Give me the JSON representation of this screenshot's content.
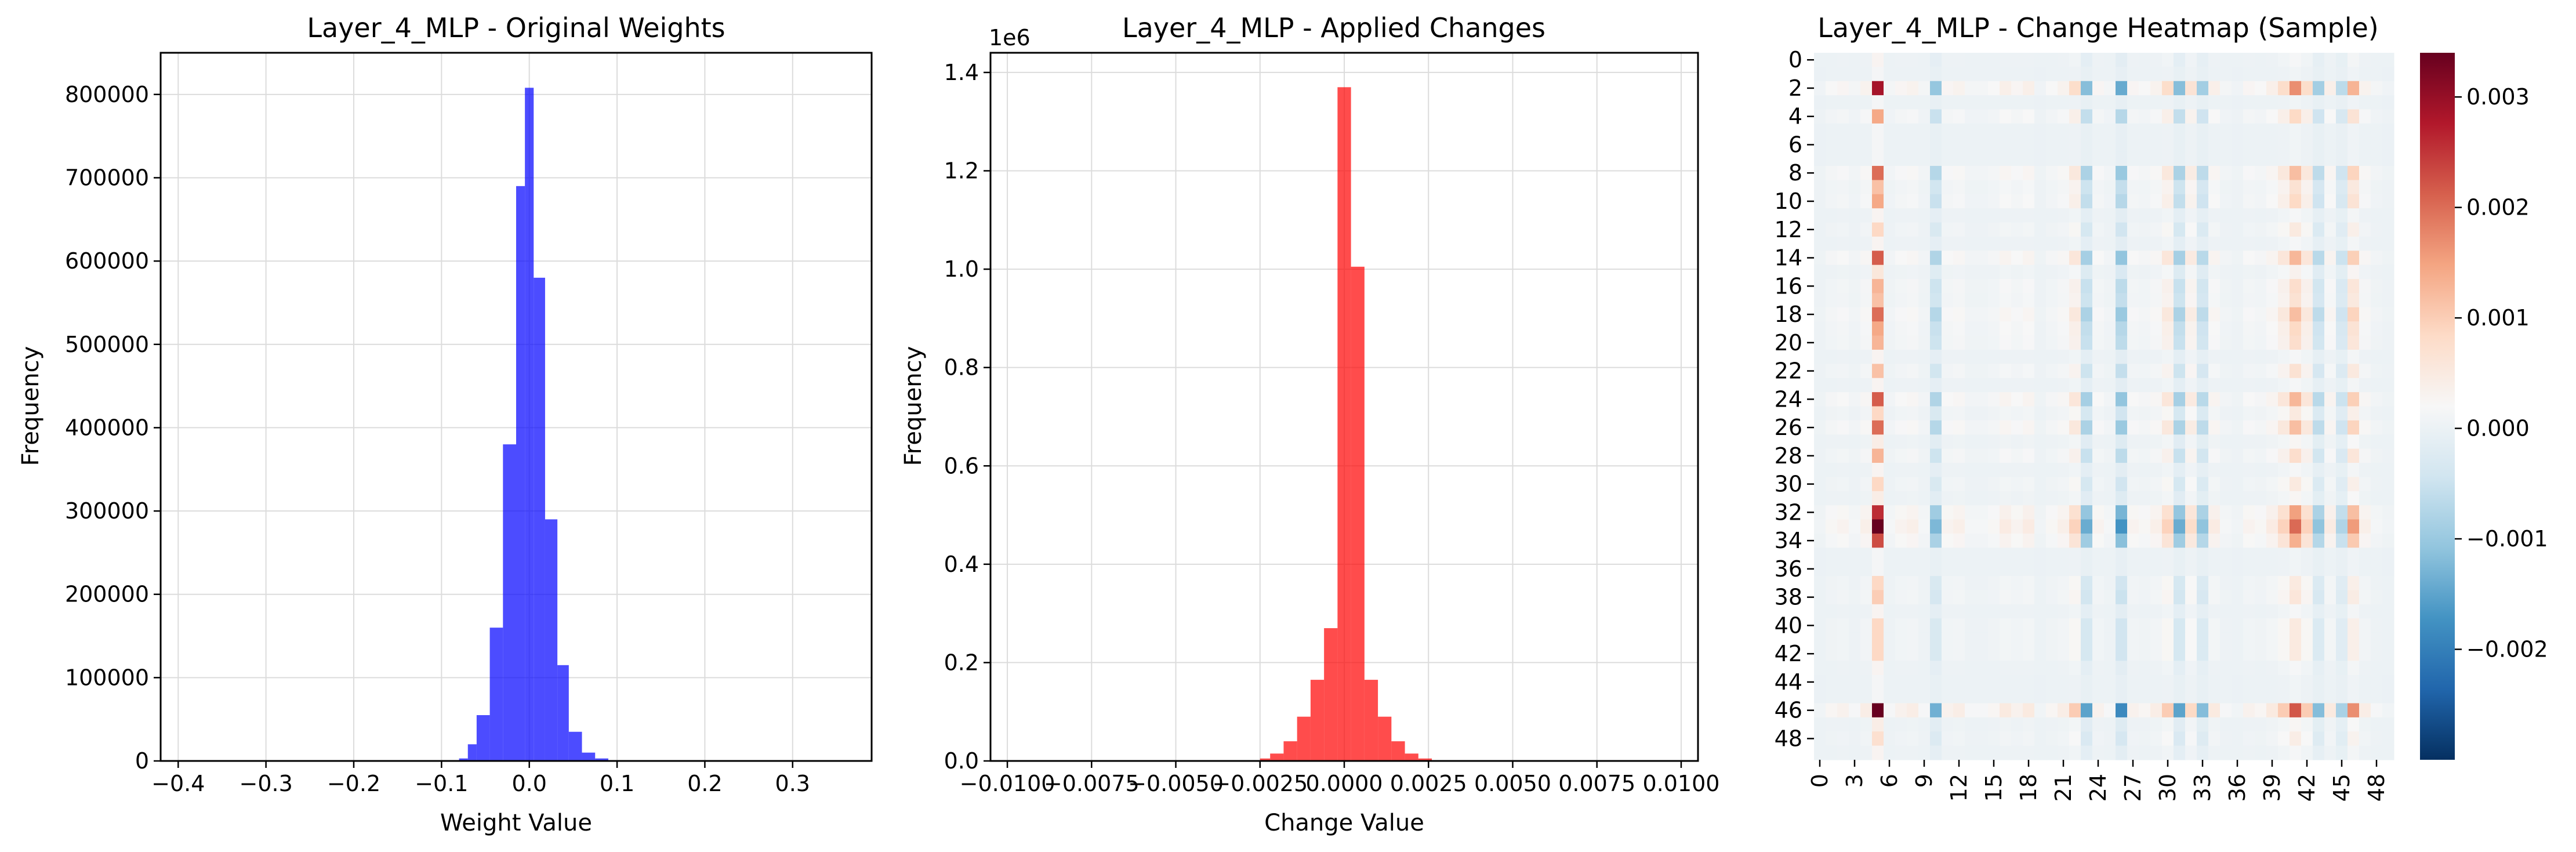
{
  "chart_data": [
    {
      "type": "bar",
      "title": "Layer_4_MLP - Original Weights",
      "xlabel": "Weight Value",
      "ylabel": "Frequency",
      "xlim": [
        -0.42,
        0.39
      ],
      "ylim": [
        0,
        850000
      ],
      "grid": true,
      "color": "#0000ff",
      "xticks": [
        -0.4,
        -0.3,
        -0.2,
        -0.1,
        0.0,
        0.1,
        0.2,
        0.3
      ],
      "xtick_labels": [
        "−0.4",
        "−0.3",
        "−0.2",
        "−0.1",
        "0.0",
        "0.1",
        "0.2",
        "0.3"
      ],
      "yticks": [
        0,
        100000,
        200000,
        300000,
        400000,
        500000,
        600000,
        700000,
        800000
      ],
      "ytick_labels": [
        "0",
        "100000",
        "200000",
        "300000",
        "400000",
        "500000",
        "600000",
        "700000",
        "800000"
      ],
      "bins": [
        {
          "x0": -0.09,
          "x1": -0.08,
          "value": 800
        },
        {
          "x0": -0.08,
          "x1": -0.07,
          "value": 3000
        },
        {
          "x0": -0.07,
          "x1": -0.06,
          "value": 20000
        },
        {
          "x0": -0.06,
          "x1": -0.045,
          "value": 55000
        },
        {
          "x0": -0.045,
          "x1": -0.03,
          "value": 160000
        },
        {
          "x0": -0.03,
          "x1": -0.015,
          "value": 380000
        },
        {
          "x0": -0.015,
          "x1": -0.005,
          "value": 690000
        },
        {
          "x0": -0.005,
          "x1": 0.005,
          "value": 808000
        },
        {
          "x0": 0.005,
          "x1": 0.018,
          "value": 580000
        },
        {
          "x0": 0.018,
          "x1": 0.032,
          "value": 290000
        },
        {
          "x0": 0.032,
          "x1": 0.045,
          "value": 115000
        },
        {
          "x0": 0.045,
          "x1": 0.06,
          "value": 35000
        },
        {
          "x0": 0.06,
          "x1": 0.075,
          "value": 10000
        },
        {
          "x0": 0.075,
          "x1": 0.09,
          "value": 3000
        },
        {
          "x0": 0.09,
          "x1": 0.105,
          "value": 800
        }
      ]
    },
    {
      "type": "bar",
      "title": "Layer_4_MLP - Applied Changes",
      "xlabel": "Change Value",
      "ylabel": "Frequency",
      "y_multiplier_label": "1e6",
      "xlim": [
        -0.0105,
        0.0105
      ],
      "ylim": [
        0,
        1.44
      ],
      "grid": true,
      "color": "#ff0000",
      "xticks": [
        -0.01,
        -0.0075,
        -0.005,
        -0.0025,
        0.0,
        0.0025,
        0.005,
        0.0075,
        0.01
      ],
      "xtick_labels": [
        "−0.0100",
        "−0.0075",
        "−0.0050",
        "−0.0025",
        "0.0000",
        "0.0025",
        "0.0050",
        "0.0075",
        "0.0100"
      ],
      "yticks": [
        0,
        0.2,
        0.4,
        0.6,
        0.8,
        1.0,
        1.2,
        1.4
      ],
      "ytick_labels": [
        "0.0",
        "0.2",
        "0.4",
        "0.6",
        "0.8",
        "1.0",
        "1.2",
        "1.4"
      ],
      "bins": [
        {
          "x0": -0.0025,
          "x1": -0.0022,
          "value": 0.005
        },
        {
          "x0": -0.0022,
          "x1": -0.0018,
          "value": 0.015
        },
        {
          "x0": -0.0018,
          "x1": -0.0014,
          "value": 0.04
        },
        {
          "x0": -0.0014,
          "x1": -0.001,
          "value": 0.09
        },
        {
          "x0": -0.001,
          "x1": -0.0006,
          "value": 0.165
        },
        {
          "x0": -0.0006,
          "x1": -0.0002,
          "value": 0.27
        },
        {
          "x0": -0.0002,
          "x1": 0.0002,
          "value": 1.37
        },
        {
          "x0": 0.0002,
          "x1": 0.0006,
          "value": 1.005
        },
        {
          "x0": 0.0006,
          "x1": 0.001,
          "value": 0.165
        },
        {
          "x0": 0.001,
          "x1": 0.0014,
          "value": 0.09
        },
        {
          "x0": 0.0014,
          "x1": 0.0018,
          "value": 0.04
        },
        {
          "x0": 0.0018,
          "x1": 0.0022,
          "value": 0.015
        },
        {
          "x0": 0.0022,
          "x1": 0.0026,
          "value": 0.005
        }
      ]
    },
    {
      "type": "heatmap",
      "title": "Layer_4_MLP - Change Heatmap (Sample)",
      "rows": 50,
      "cols": 50,
      "colormap": "RdBu_r",
      "vmin": -0.003,
      "vmax": 0.0034,
      "yticks": [
        0,
        2,
        4,
        6,
        8,
        10,
        12,
        14,
        16,
        18,
        20,
        22,
        24,
        26,
        28,
        30,
        32,
        34,
        36,
        38,
        40,
        42,
        44,
        46,
        48
      ],
      "xticks": [
        0,
        3,
        6,
        9,
        12,
        15,
        18,
        21,
        24,
        27,
        30,
        33,
        36,
        39,
        42,
        45,
        48
      ],
      "colorbar_ticks": [
        -0.002,
        -0.001,
        0.0,
        0.001,
        0.002,
        0.003
      ],
      "colorbar_tick_labels": [
        "−0.002",
        "−0.001",
        "0.000",
        "0.001",
        "0.002",
        "0.003"
      ],
      "row_weights": [
        0.1,
        0.05,
        1.0,
        0.05,
        0.5,
        0.05,
        0.05,
        0.05,
        0.7,
        0.4,
        0.5,
        0.1,
        0.3,
        0.1,
        0.75,
        0.2,
        0.45,
        0.4,
        0.7,
        0.5,
        0.45,
        0.1,
        0.4,
        0.1,
        0.75,
        0.3,
        0.7,
        0.15,
        0.45,
        0.1,
        0.3,
        0.15,
        0.9,
        1.2,
        0.8,
        0.05,
        0.05,
        0.3,
        0.35,
        0.1,
        0.3,
        0.3,
        0.3,
        0.1,
        0.05,
        0.05,
        1.3,
        0.15,
        0.25,
        0.1
      ],
      "col_weights": [
        0.05,
        0.15,
        0.2,
        0.1,
        0.25,
        2.2,
        0.1,
        0.2,
        0.25,
        0.1,
        -0.8,
        0.2,
        0.25,
        0.1,
        0.1,
        0.15,
        0.3,
        0.2,
        0.3,
        0.05,
        0.15,
        0.25,
        0.6,
        -0.9,
        0.2,
        0.1,
        -1.1,
        0.2,
        0.15,
        0.25,
        0.6,
        -0.9,
        0.5,
        -0.7,
        0.3,
        0.1,
        0.05,
        0.2,
        0.15,
        0.3,
        0.6,
        1.3,
        0.6,
        -0.7,
        0.3,
        -0.5,
        1.0,
        0.25,
        0.1,
        0.05
      ]
    }
  ]
}
